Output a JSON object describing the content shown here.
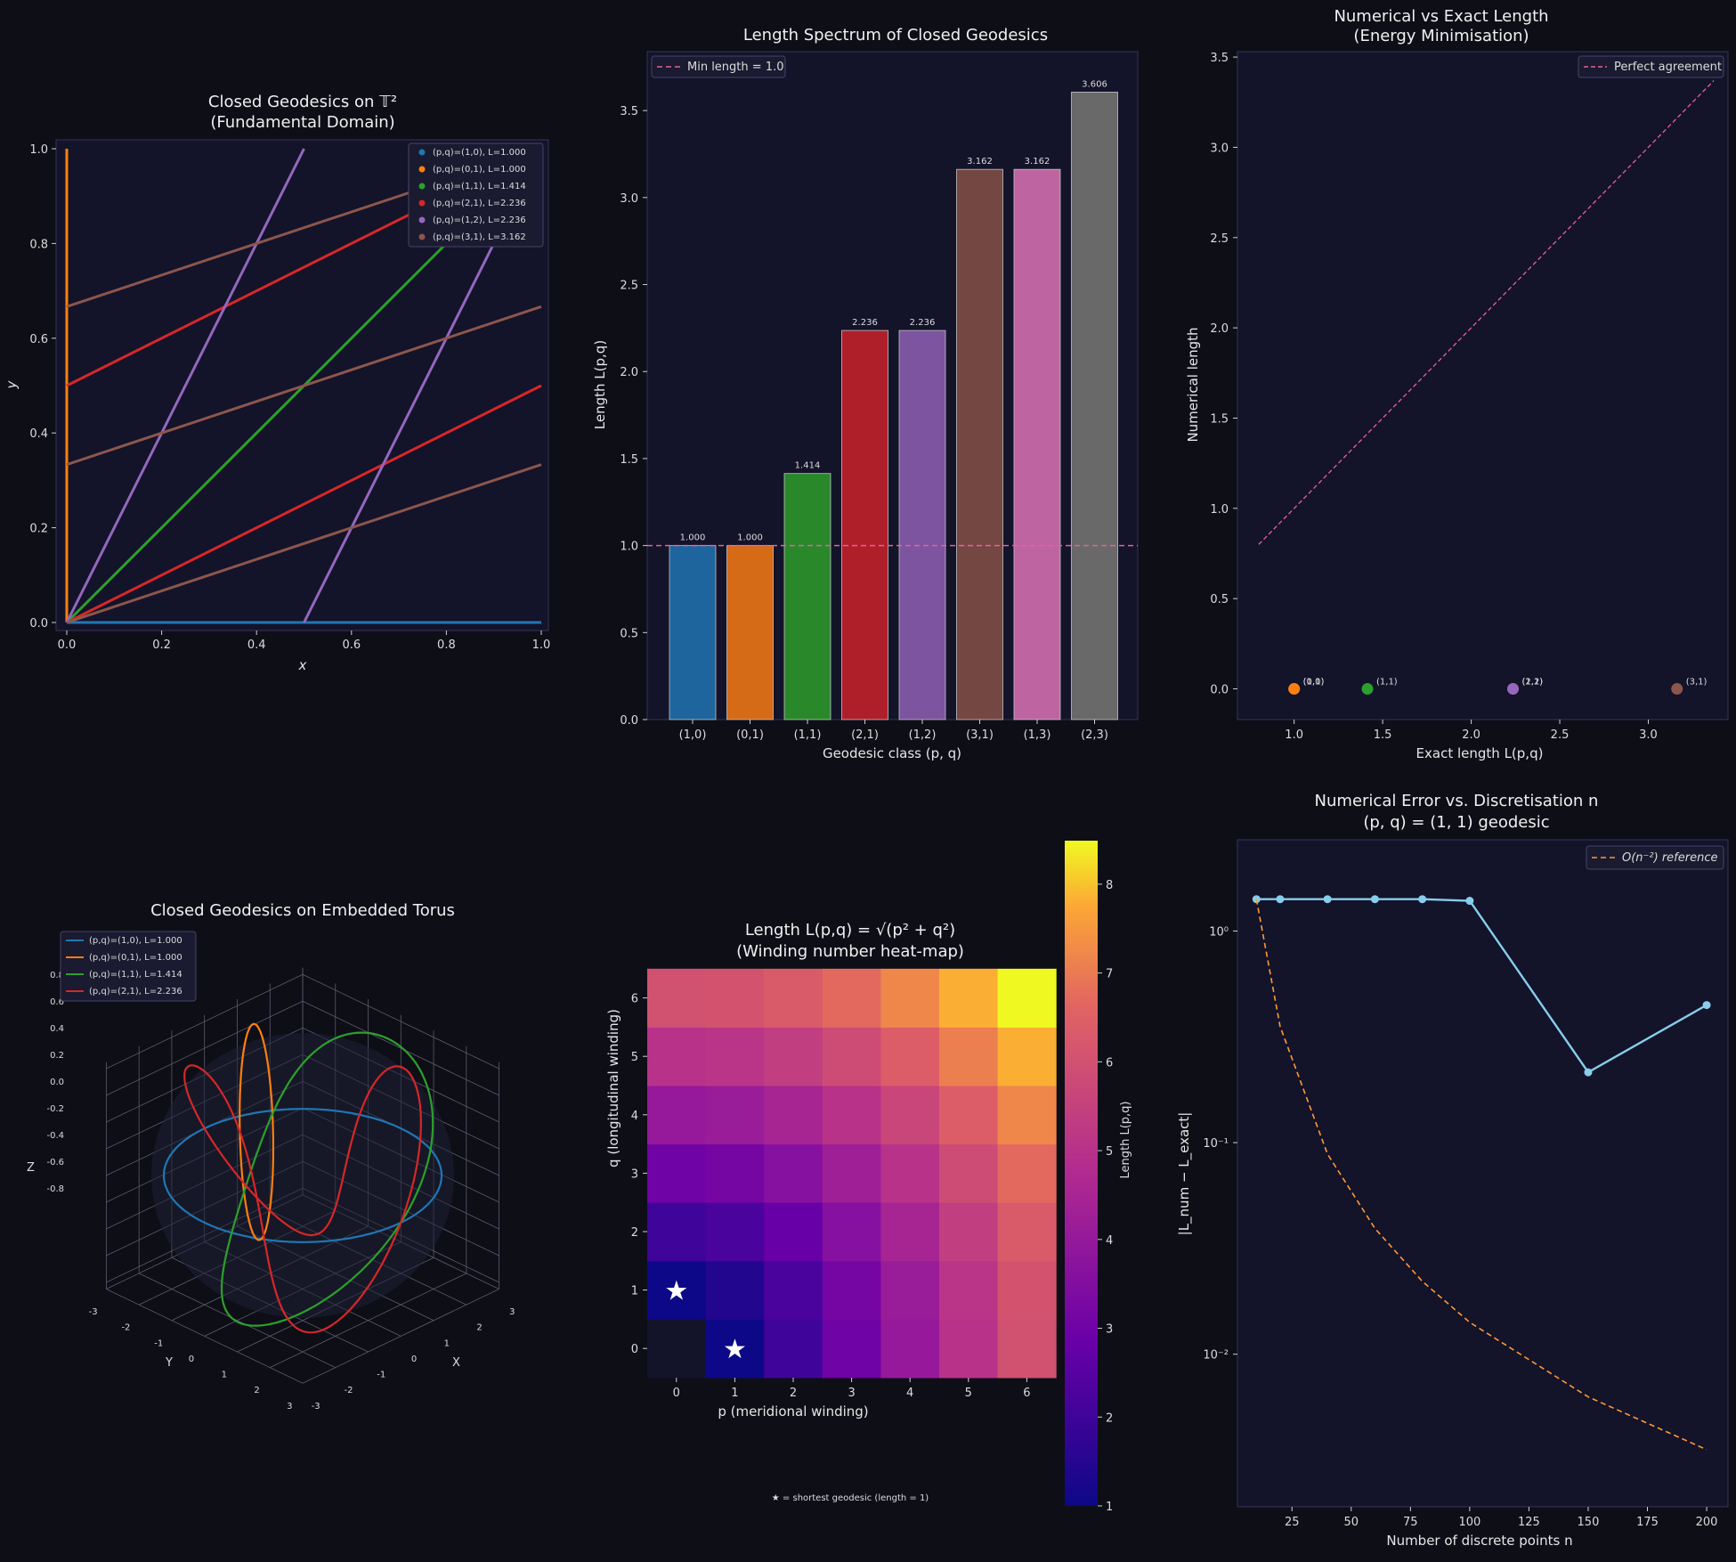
{
  "colors": {
    "bg": "#0e0e17",
    "panel": "#13132a",
    "frame": "#34345a",
    "text": "#dcdcdc",
    "pink": "#e8609a",
    "blue": "#1f6fc0",
    "orange": "#ff8c1a",
    "green": "#2ca02c",
    "red": "#d62728",
    "purple": "#9467bd",
    "brown": "#8c564b",
    "err": "#87ceeb",
    "ref": "#ff9933"
  },
  "chart_data": [
    {
      "id": "fundamental",
      "type": "line",
      "title": [
        "Closed Geodesics on 𝕋²",
        "(Fundamental Domain)"
      ],
      "xlabel": "x",
      "ylabel": "y",
      "xlim": [
        0,
        1
      ],
      "ylim": [
        0,
        1
      ],
      "xticks": [
        "0.0",
        "0.2",
        "0.4",
        "0.6",
        "0.8",
        "1.0"
      ],
      "yticks": [
        "0.0",
        "0.2",
        "0.4",
        "0.6",
        "0.8",
        "1.0"
      ],
      "legend_position": "top-right",
      "series": [
        {
          "name": "(p,q)=(1,0),  L=1.000",
          "p": 1,
          "q": 0,
          "color": "#1f77b4"
        },
        {
          "name": "(p,q)=(0,1),  L=1.000",
          "p": 0,
          "q": 1,
          "color": "#ff7f0e"
        },
        {
          "name": "(p,q)=(1,1),  L=1.414",
          "p": 1,
          "q": 1,
          "color": "#2ca02c"
        },
        {
          "name": "(p,q)=(2,1),  L=2.236",
          "p": 2,
          "q": 1,
          "color": "#d62728"
        },
        {
          "name": "(p,q)=(1,2),  L=2.236",
          "p": 1,
          "q": 2,
          "color": "#9467bd"
        },
        {
          "name": "(p,q)=(3,1),  L=3.162",
          "p": 3,
          "q": 1,
          "color": "#8c564b"
        }
      ]
    },
    {
      "id": "spectrum",
      "type": "bar",
      "title": [
        "Length Spectrum of Closed Geodesics"
      ],
      "xlabel": "Geodesic class (p, q)",
      "ylabel": "Length L(p,q)",
      "ylim": [
        0,
        3.8
      ],
      "yticks": [
        "0.0",
        "0.5",
        "1.0",
        "1.5",
        "2.0",
        "2.5",
        "3.0",
        "3.5"
      ],
      "categories": [
        "(1,0)",
        "(0,1)",
        "(1,1)",
        "(2,1)",
        "(1,2)",
        "(3,1)",
        "(1,3)",
        "(2,3)"
      ],
      "values": [
        1.0,
        1.0,
        1.414,
        2.236,
        2.236,
        3.162,
        3.162,
        3.606
      ],
      "value_labels": [
        "1.000",
        "1.000",
        "1.414",
        "2.236",
        "2.236",
        "3.162",
        "3.162",
        "3.606"
      ],
      "bar_colors": [
        "#1f6aa5",
        "#e07016",
        "#2b8f2b",
        "#b8202a",
        "#8258a6",
        "#7a4a44",
        "#c86aa8",
        "#6e6e6e"
      ],
      "reference_line": {
        "value": 1.0,
        "label": "Min length = 1.0"
      },
      "legend_position": "top-left"
    },
    {
      "id": "numerical_vs_exact",
      "type": "scatter",
      "title": [
        "Numerical vs Exact Length",
        "(Energy Minimisation)"
      ],
      "xlabel": "Exact length L(p,q)",
      "ylabel": "Numerical length",
      "xlim": [
        0.8,
        3.3
      ],
      "ylim": [
        -0.17,
        3.53
      ],
      "xticks": [
        "1.0",
        "1.5",
        "2.0",
        "2.5",
        "3.0"
      ],
      "yticks": [
        "0.0",
        "0.5",
        "1.0",
        "1.5",
        "2.0",
        "2.5",
        "3.0",
        "3.5"
      ],
      "reference_line": {
        "label": "Perfect agreement",
        "x": [
          0.8,
          3.37
        ],
        "y": [
          0.8,
          3.37
        ]
      },
      "legend_position": "top-right",
      "points": [
        {
          "label": "(1,0)",
          "x": 1.0,
          "y": 0.0,
          "color": "#1f77b4"
        },
        {
          "label": "(0,1)",
          "x": 1.0,
          "y": 0.0,
          "color": "#ff7f0e"
        },
        {
          "label": "(1,1)",
          "x": 1.414,
          "y": 0.0,
          "color": "#2ca02c"
        },
        {
          "label": "(2,1)",
          "x": 2.236,
          "y": 0.0,
          "color": "#d62728"
        },
        {
          "label": "(1,2)",
          "x": 2.236,
          "y": 0.0,
          "color": "#9467bd"
        },
        {
          "label": "(3,1)",
          "x": 3.162,
          "y": 0.0,
          "color": "#8c564b"
        }
      ]
    },
    {
      "id": "torus3d",
      "type": "line",
      "title": [
        "Closed Geodesics on Embedded Torus"
      ],
      "xlabel": "X",
      "ylabel": "Y",
      "zlabel": "Z",
      "xticks": [
        "-3",
        "-2",
        "-1",
        "0",
        "1",
        "2",
        "3"
      ],
      "yticks": [
        "-3",
        "-2",
        "-1",
        "0",
        "1",
        "2",
        "3"
      ],
      "zticks": [
        "0.8",
        "0.6",
        "0.4",
        "0.2",
        "0.0",
        "-0.2",
        "-0.4",
        "-0.6",
        "-0.8"
      ],
      "legend_position": "top-left",
      "series": [
        {
          "name": "(p,q)=(1,0),  L=1.000",
          "color": "#1f77b4"
        },
        {
          "name": "(p,q)=(0,1),  L=1.000",
          "color": "#ff7f0e"
        },
        {
          "name": "(p,q)=(1,1),  L=1.414",
          "color": "#2ca02c"
        },
        {
          "name": "(p,q)=(2,1),  L=2.236",
          "color": "#d62728"
        }
      ]
    },
    {
      "id": "heatmap",
      "type": "heatmap",
      "title": [
        "Length L(p,q) = √(p² + q²)",
        "(Winding number heat-map)"
      ],
      "xlabel": "p (meridional winding)",
      "ylabel": "q (longitudinal winding)",
      "x": [
        0,
        1,
        2,
        3,
        4,
        5,
        6
      ],
      "y": [
        0,
        1,
        2,
        3,
        4,
        5,
        6
      ],
      "value_formula": "sqrt(p^2+q^2)",
      "colorbar": {
        "label": "Length L(p,q)",
        "min": 1,
        "max": 8.49,
        "ticks": [
          "1",
          "2",
          "3",
          "4",
          "5",
          "6",
          "7",
          "8"
        ]
      },
      "colormap": "plasma",
      "stars": [
        [
          0,
          1
        ],
        [
          1,
          0
        ]
      ],
      "note": "★ = shortest geodesic (length = 1)"
    },
    {
      "id": "error",
      "type": "line",
      "title": [
        "Numerical Error vs. Discretisation n",
        "(p, q) = (1, 1) geodesic"
      ],
      "xlabel": "Number of discrete points n",
      "ylabel": "|L_num − L_exact|",
      "yscale": "log",
      "xlim": [
        2,
        209
      ],
      "ylim": [
        0.0019,
        2.7
      ],
      "xticks": [
        "25",
        "50",
        "75",
        "100",
        "125",
        "150",
        "175",
        "200"
      ],
      "yticks": [
        "10⁰",
        "10⁻¹",
        "10⁻²"
      ],
      "legend_position": "top-right",
      "series": [
        {
          "name": "",
          "x": [
            10,
            20,
            40,
            60,
            80,
            100,
            150,
            200
          ],
          "y": [
            1.414,
            1.414,
            1.414,
            1.414,
            1.414,
            1.39,
            0.215,
            0.447
          ],
          "color": "#87ceeb",
          "style": "solid-marker"
        },
        {
          "name": "O(n⁻²) reference",
          "x": [
            10,
            20,
            40,
            60,
            80,
            100,
            150,
            200
          ],
          "y": [
            1.414,
            0.354,
            0.0884,
            0.0393,
            0.0221,
            0.01414,
            0.00628,
            0.00354
          ],
          "color": "#ff9933",
          "style": "dashed"
        }
      ]
    }
  ]
}
